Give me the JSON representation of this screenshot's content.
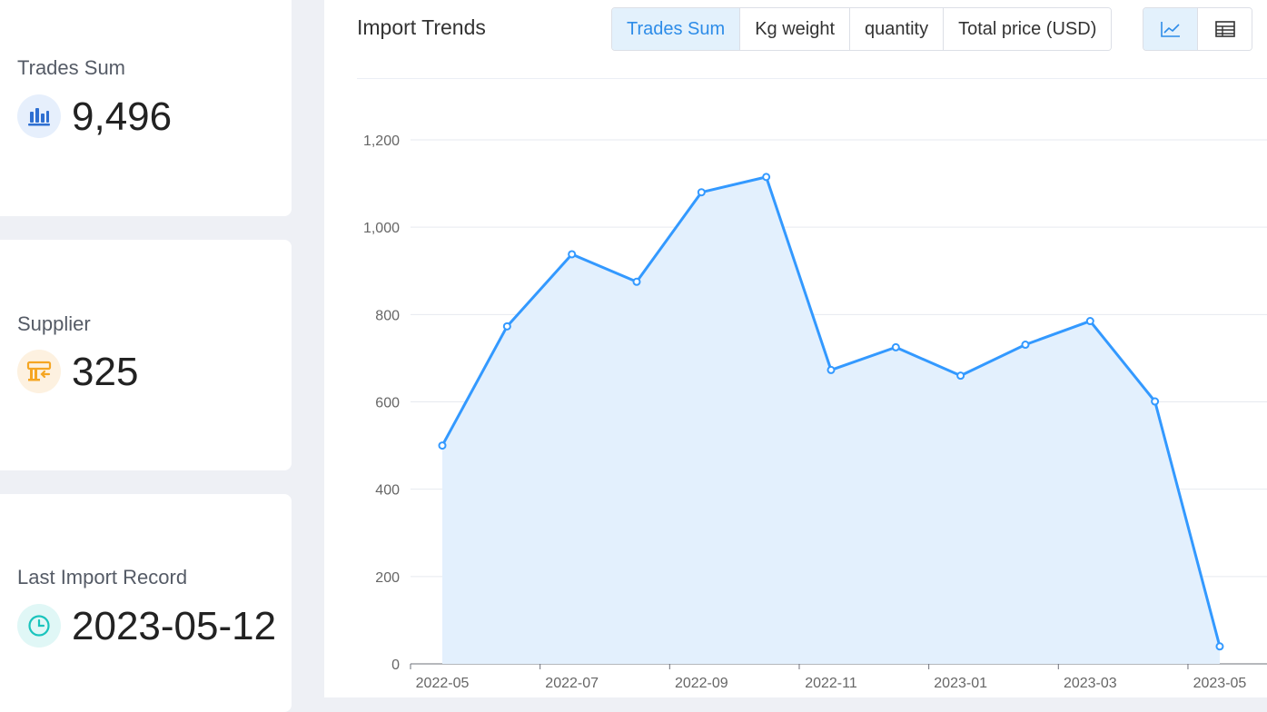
{
  "stats": {
    "trades_sum": {
      "label": "Trades Sum",
      "value": "9,496",
      "icon": "bar-chart-icon",
      "color": "#2e6fd1"
    },
    "supplier": {
      "label": "Supplier",
      "value": "325",
      "icon": "store-icon",
      "color": "#f5a623"
    },
    "last_import": {
      "label": "Last Import Record",
      "value": "2023-05-12",
      "icon": "clock-icon",
      "color": "#1ac4bd"
    }
  },
  "panel": {
    "title": "Import Trends",
    "metric_tabs": [
      "Trades Sum",
      "Kg weight",
      "quantity",
      "Total price (USD)"
    ],
    "active_tab": "Trades Sum",
    "view_buttons": [
      {
        "name": "line-view-button",
        "icon": "line-chart-icon",
        "active": true
      },
      {
        "name": "table-view-button",
        "icon": "table-icon",
        "active": false
      }
    ]
  },
  "colors": {
    "accent": "#2d8ce8",
    "line": "#3399ff",
    "area": "#e3f0fd"
  },
  "chart_data": {
    "type": "area",
    "x": [
      "2022-05",
      "2022-06",
      "2022-07",
      "2022-08",
      "2022-09",
      "2022-10",
      "2022-11",
      "2022-12",
      "2023-01",
      "2023-02",
      "2023-03",
      "2023-04",
      "2023-05"
    ],
    "values": [
      500,
      773,
      938,
      875,
      1080,
      1115,
      673,
      725,
      660,
      731,
      785,
      601,
      40
    ],
    "x_tick_labels": [
      "2022-05",
      "2022-07",
      "2022-09",
      "2022-11",
      "2023-01",
      "2023-03",
      "2023-05"
    ],
    "y_ticks": [
      0,
      200,
      400,
      600,
      800,
      "1,000",
      "1,200"
    ],
    "ylim": [
      0,
      1200
    ],
    "grid": true,
    "title": "",
    "xlabel": "",
    "ylabel": ""
  }
}
